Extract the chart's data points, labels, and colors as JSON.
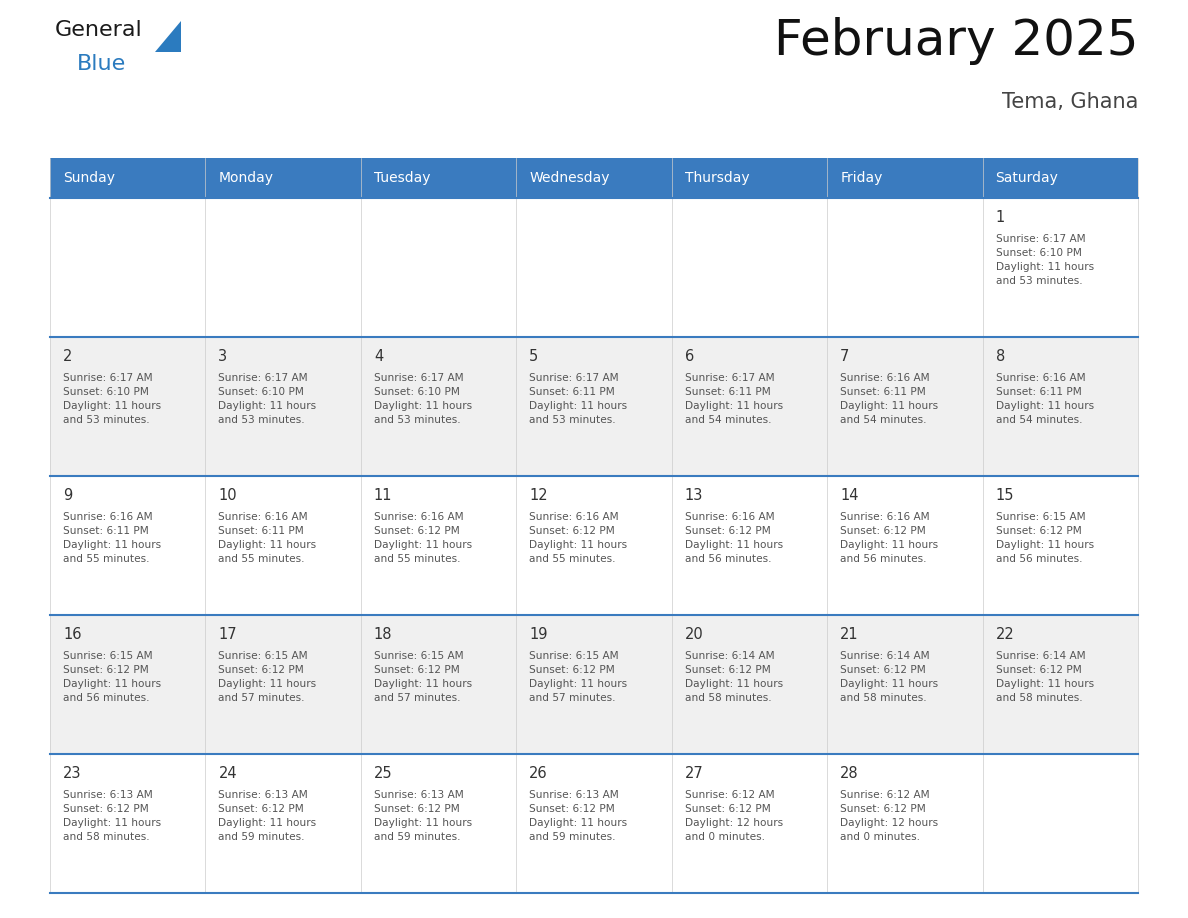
{
  "title": "February 2025",
  "subtitle": "Tema, Ghana",
  "days_of_week": [
    "Sunday",
    "Monday",
    "Tuesday",
    "Wednesday",
    "Thursday",
    "Friday",
    "Saturday"
  ],
  "header_bg": "#3a7bbf",
  "header_text_color": "#ffffff",
  "cell_bg_light": "#f0f0f0",
  "cell_bg_white": "#ffffff",
  "border_color": "#3a7bbf",
  "text_color": "#555555",
  "day_num_color": "#333333",
  "logo_general_color": "#1a1a1a",
  "logo_blue_color": "#2b7bbf",
  "logo_triangle_color": "#2b7bbf",
  "calendar_data": [
    [
      null,
      null,
      null,
      null,
      null,
      null,
      {
        "day": 1,
        "sunrise": "6:17 AM",
        "sunset": "6:10 PM",
        "daylight": "11 hours\nand 53 minutes."
      }
    ],
    [
      {
        "day": 2,
        "sunrise": "6:17 AM",
        "sunset": "6:10 PM",
        "daylight": "11 hours\nand 53 minutes."
      },
      {
        "day": 3,
        "sunrise": "6:17 AM",
        "sunset": "6:10 PM",
        "daylight": "11 hours\nand 53 minutes."
      },
      {
        "day": 4,
        "sunrise": "6:17 AM",
        "sunset": "6:10 PM",
        "daylight": "11 hours\nand 53 minutes."
      },
      {
        "day": 5,
        "sunrise": "6:17 AM",
        "sunset": "6:11 PM",
        "daylight": "11 hours\nand 53 minutes."
      },
      {
        "day": 6,
        "sunrise": "6:17 AM",
        "sunset": "6:11 PM",
        "daylight": "11 hours\nand 54 minutes."
      },
      {
        "day": 7,
        "sunrise": "6:16 AM",
        "sunset": "6:11 PM",
        "daylight": "11 hours\nand 54 minutes."
      },
      {
        "day": 8,
        "sunrise": "6:16 AM",
        "sunset": "6:11 PM",
        "daylight": "11 hours\nand 54 minutes."
      }
    ],
    [
      {
        "day": 9,
        "sunrise": "6:16 AM",
        "sunset": "6:11 PM",
        "daylight": "11 hours\nand 55 minutes."
      },
      {
        "day": 10,
        "sunrise": "6:16 AM",
        "sunset": "6:11 PM",
        "daylight": "11 hours\nand 55 minutes."
      },
      {
        "day": 11,
        "sunrise": "6:16 AM",
        "sunset": "6:12 PM",
        "daylight": "11 hours\nand 55 minutes."
      },
      {
        "day": 12,
        "sunrise": "6:16 AM",
        "sunset": "6:12 PM",
        "daylight": "11 hours\nand 55 minutes."
      },
      {
        "day": 13,
        "sunrise": "6:16 AM",
        "sunset": "6:12 PM",
        "daylight": "11 hours\nand 56 minutes."
      },
      {
        "day": 14,
        "sunrise": "6:16 AM",
        "sunset": "6:12 PM",
        "daylight": "11 hours\nand 56 minutes."
      },
      {
        "day": 15,
        "sunrise": "6:15 AM",
        "sunset": "6:12 PM",
        "daylight": "11 hours\nand 56 minutes."
      }
    ],
    [
      {
        "day": 16,
        "sunrise": "6:15 AM",
        "sunset": "6:12 PM",
        "daylight": "11 hours\nand 56 minutes."
      },
      {
        "day": 17,
        "sunrise": "6:15 AM",
        "sunset": "6:12 PM",
        "daylight": "11 hours\nand 57 minutes."
      },
      {
        "day": 18,
        "sunrise": "6:15 AM",
        "sunset": "6:12 PM",
        "daylight": "11 hours\nand 57 minutes."
      },
      {
        "day": 19,
        "sunrise": "6:15 AM",
        "sunset": "6:12 PM",
        "daylight": "11 hours\nand 57 minutes."
      },
      {
        "day": 20,
        "sunrise": "6:14 AM",
        "sunset": "6:12 PM",
        "daylight": "11 hours\nand 58 minutes."
      },
      {
        "day": 21,
        "sunrise": "6:14 AM",
        "sunset": "6:12 PM",
        "daylight": "11 hours\nand 58 minutes."
      },
      {
        "day": 22,
        "sunrise": "6:14 AM",
        "sunset": "6:12 PM",
        "daylight": "11 hours\nand 58 minutes."
      }
    ],
    [
      {
        "day": 23,
        "sunrise": "6:13 AM",
        "sunset": "6:12 PM",
        "daylight": "11 hours\nand 58 minutes."
      },
      {
        "day": 24,
        "sunrise": "6:13 AM",
        "sunset": "6:12 PM",
        "daylight": "11 hours\nand 59 minutes."
      },
      {
        "day": 25,
        "sunrise": "6:13 AM",
        "sunset": "6:12 PM",
        "daylight": "11 hours\nand 59 minutes."
      },
      {
        "day": 26,
        "sunrise": "6:13 AM",
        "sunset": "6:12 PM",
        "daylight": "11 hours\nand 59 minutes."
      },
      {
        "day": 27,
        "sunrise": "6:12 AM",
        "sunset": "6:12 PM",
        "daylight": "12 hours\nand 0 minutes."
      },
      {
        "day": 28,
        "sunrise": "6:12 AM",
        "sunset": "6:12 PM",
        "daylight": "12 hours\nand 0 minutes."
      },
      null
    ]
  ]
}
